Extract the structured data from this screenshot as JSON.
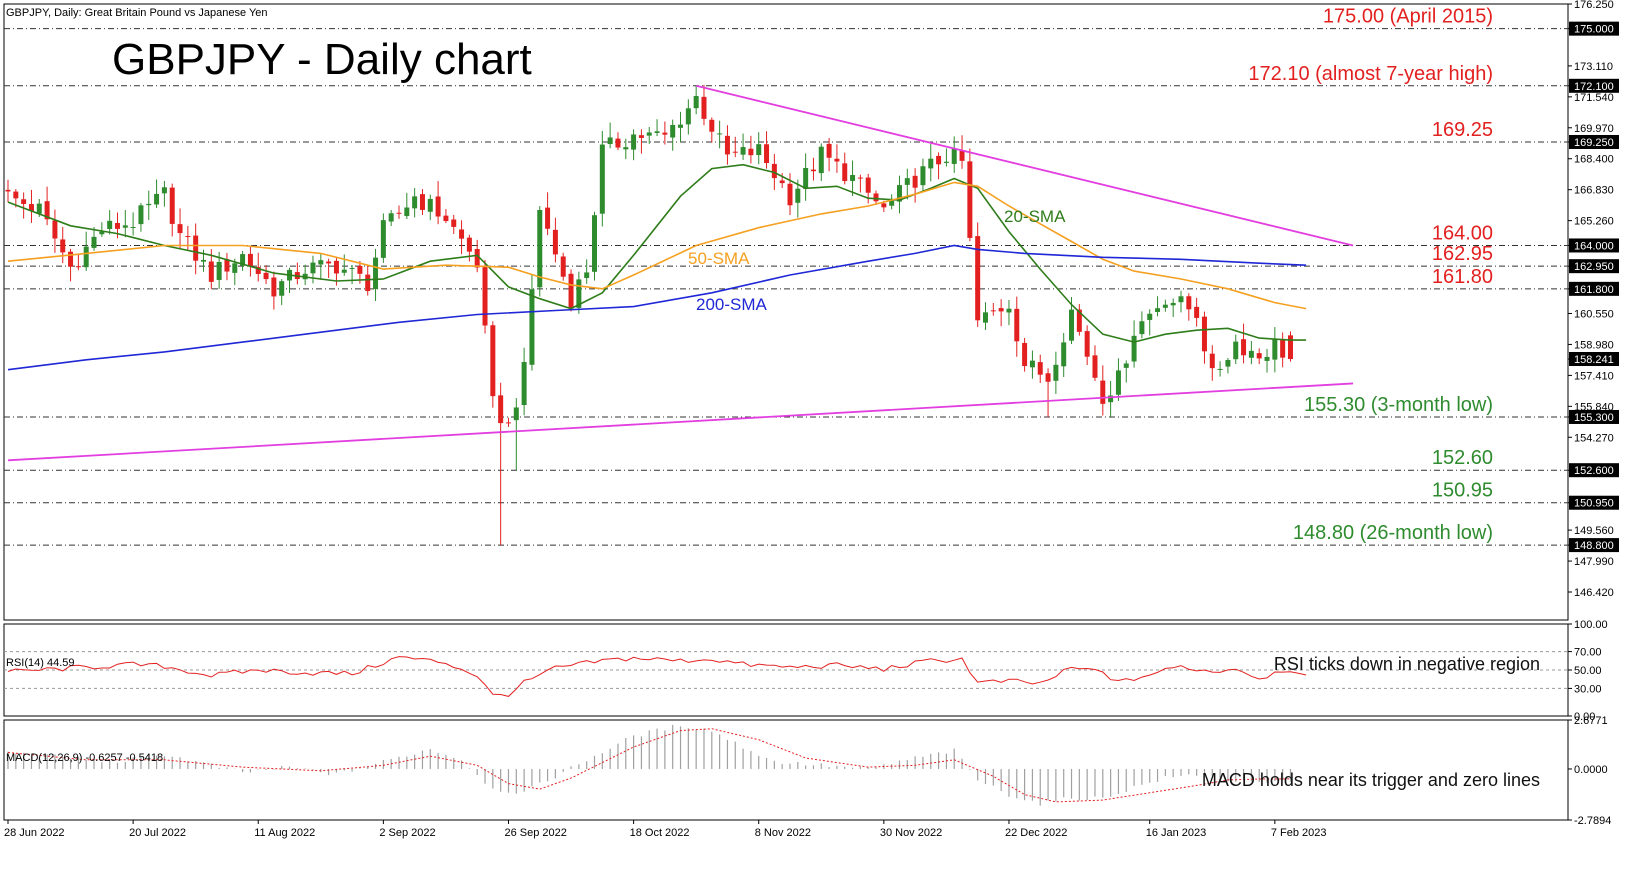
{
  "header": {
    "symbol_line": "GBPJPY, Daily:  Great Britain Pound vs Japanese Yen",
    "title": "GBPJPY - Daily chart"
  },
  "colors": {
    "bull": "#2e8b2e",
    "bear": "#e32020",
    "sma20": "#2e7d1a",
    "sma50": "#f5a020",
    "sma200": "#1f27d6",
    "trend": "#e23ee0",
    "level_red": "#e32020",
    "level_green": "#2e8b2e",
    "rsi": "#e32020",
    "macd_signal": "#e32020",
    "macd_hist": "#a0a0a0"
  },
  "chart_data": [
    {
      "type": "candlestick",
      "title": "GBPJPY - Daily chart",
      "ylim": [
        145.0,
        176.25
      ],
      "y_ticks": [
        "176.250",
        "175.000",
        "173.110",
        "172.100",
        "171.540",
        "169.970",
        "169.250",
        "168.400",
        "166.830",
        "165.260",
        "164.000",
        "162.950",
        "161.800",
        "160.550",
        "158.980",
        "158.241",
        "157.410",
        "155.840",
        "155.300",
        "154.270",
        "152.600",
        "150.950",
        "149.560",
        "148.800",
        "147.990",
        "146.420"
      ],
      "highlighted_ticks": [
        "175.000",
        "172.100",
        "169.250",
        "164.000",
        "162.950",
        "161.800",
        "158.241",
        "155.300",
        "152.600",
        "150.950",
        "148.800"
      ],
      "x_ticks": [
        "28 Jun 2022",
        "20 Jul 2022",
        "11 Aug 2022",
        "2 Sep 2022",
        "26 Sep 2022",
        "18 Oct 2022",
        "8 Nov 2022",
        "30 Nov 2022",
        "22 Dec 2022",
        "16 Jan 2023",
        "7 Feb 2023"
      ],
      "x_tick_index": [
        0,
        16,
        32,
        48,
        64,
        80,
        96,
        112,
        128,
        146,
        162
      ],
      "levels": [
        {
          "value": 175.0,
          "label": "175.00 (April 2015)",
          "color": "red"
        },
        {
          "value": 172.1,
          "label": "172.10 (almost 7-year high)",
          "color": "red"
        },
        {
          "value": 169.25,
          "label": "169.25",
          "color": "red"
        },
        {
          "value": 164.0,
          "label": "164.00",
          "color": "red"
        },
        {
          "value": 162.95,
          "label": "162.95",
          "color": "red"
        },
        {
          "value": 161.8,
          "label": "161.80",
          "color": "red"
        },
        {
          "value": 155.3,
          "label": "155.30 (3-month low)",
          "color": "green"
        },
        {
          "value": 152.6,
          "label": "152.60",
          "color": "green"
        },
        {
          "value": 150.95,
          "label": "150.95",
          "color": "green"
        },
        {
          "value": 148.8,
          "label": "148.80 (26-month low)",
          "color": "green"
        }
      ],
      "trendlines": [
        {
          "from": [
            88,
            172.1
          ],
          "to": [
            172,
            164.0
          ]
        },
        {
          "from": [
            0,
            153.1
          ],
          "to": [
            172,
            157.0
          ]
        }
      ],
      "series": [
        {
          "name": "20-SMA",
          "points": [
            [
              0,
              166.2
            ],
            [
              8,
              165.0
            ],
            [
              14,
              164.6
            ],
            [
              20,
              164.0
            ],
            [
              26,
              163.5
            ],
            [
              34,
              162.6
            ],
            [
              42,
              162.2
            ],
            [
              48,
              162.3
            ],
            [
              54,
              163.2
            ],
            [
              60,
              163.5
            ],
            [
              64,
              161.9
            ],
            [
              68,
              161.3
            ],
            [
              72,
              160.8
            ],
            [
              76,
              161.6
            ],
            [
              80,
              163.5
            ],
            [
              86,
              166.5
            ],
            [
              90,
              167.9
            ],
            [
              94,
              168.1
            ],
            [
              98,
              167.7
            ],
            [
              102,
              166.9
            ],
            [
              106,
              167.0
            ],
            [
              110,
              166.4
            ],
            [
              114,
              166.3
            ],
            [
              118,
              166.9
            ],
            [
              121,
              167.4
            ],
            [
              124,
              166.9
            ],
            [
              128,
              164.7
            ],
            [
              132,
              162.8
            ],
            [
              136,
              161.0
            ],
            [
              140,
              159.5
            ],
            [
              144,
              159.1
            ],
            [
              148,
              159.5
            ],
            [
              152,
              159.7
            ],
            [
              156,
              159.8
            ],
            [
              160,
              159.3
            ],
            [
              164,
              159.2
            ],
            [
              166,
              159.2
            ]
          ]
        },
        {
          "name": "50-SMA",
          "points": [
            [
              0,
              163.2
            ],
            [
              10,
              163.6
            ],
            [
              20,
              164.0
            ],
            [
              30,
              164.0
            ],
            [
              40,
              163.6
            ],
            [
              48,
              162.8
            ],
            [
              56,
              163.0
            ],
            [
              64,
              162.9
            ],
            [
              68,
              162.4
            ],
            [
              72,
              162.0
            ],
            [
              76,
              161.8
            ],
            [
              80,
              162.5
            ],
            [
              88,
              164.0
            ],
            [
              96,
              164.9
            ],
            [
              104,
              165.6
            ],
            [
              110,
              166.0
            ],
            [
              116,
              166.6
            ],
            [
              121,
              167.2
            ],
            [
              124,
              167.0
            ],
            [
              128,
              166.0
            ],
            [
              132,
              165.1
            ],
            [
              136,
              164.2
            ],
            [
              140,
              163.3
            ],
            [
              144,
              162.7
            ],
            [
              150,
              162.3
            ],
            [
              156,
              161.8
            ],
            [
              162,
              161.1
            ],
            [
              166,
              160.8
            ]
          ]
        },
        {
          "name": "200-SMA",
          "points": [
            [
              0,
              157.7
            ],
            [
              10,
              158.2
            ],
            [
              20,
              158.6
            ],
            [
              30,
              159.1
            ],
            [
              40,
              159.6
            ],
            [
              50,
              160.1
            ],
            [
              60,
              160.5
            ],
            [
              70,
              160.7
            ],
            [
              80,
              160.9
            ],
            [
              90,
              161.6
            ],
            [
              100,
              162.5
            ],
            [
              110,
              163.2
            ],
            [
              116,
              163.6
            ],
            [
              121,
              164.0
            ],
            [
              124,
              163.8
            ],
            [
              130,
              163.6
            ],
            [
              140,
              163.4
            ],
            [
              150,
              163.3
            ],
            [
              160,
              163.1
            ],
            [
              166,
              163.0
            ]
          ]
        }
      ],
      "ohlc_keypoints": [
        [
          0,
          166.5
        ],
        [
          4,
          165.8
        ],
        [
          8,
          162.9
        ],
        [
          12,
          164.8
        ],
        [
          16,
          165.2
        ],
        [
          20,
          166.6
        ],
        [
          22,
          164.5
        ],
        [
          26,
          162.5
        ],
        [
          30,
          163.5
        ],
        [
          34,
          161.8
        ],
        [
          38,
          162.8
        ],
        [
          42,
          163.0
        ],
        [
          46,
          162.1
        ],
        [
          48,
          164.8
        ],
        [
          52,
          166.5
        ],
        [
          56,
          165.4
        ],
        [
          60,
          163.1
        ],
        [
          62,
          155.9
        ],
        [
          64,
          154.8
        ],
        [
          66,
          157.6
        ],
        [
          68,
          165.9
        ],
        [
          72,
          161.3
        ],
        [
          74,
          162.8
        ],
        [
          76,
          168.8
        ],
        [
          80,
          169.6
        ],
        [
          84,
          169.5
        ],
        [
          88,
          171.5
        ],
        [
          92,
          168.5
        ],
        [
          96,
          168.8
        ],
        [
          100,
          166.5
        ],
        [
          104,
          168.6
        ],
        [
          108,
          167.4
        ],
        [
          112,
          165.8
        ],
        [
          116,
          167.4
        ],
        [
          120,
          168.6
        ],
        [
          122,
          168.2
        ],
        [
          124,
          160.1
        ],
        [
          128,
          161.1
        ],
        [
          130,
          158.0
        ],
        [
          133,
          157.3
        ],
        [
          136,
          160.7
        ],
        [
          138,
          158.5
        ],
        [
          140,
          156.4
        ],
        [
          142,
          157.2
        ],
        [
          144,
          159.7
        ],
        [
          148,
          161.4
        ],
        [
          152,
          160.6
        ],
        [
          154,
          157.3
        ],
        [
          157,
          159.1
        ],
        [
          160,
          158.4
        ],
        [
          162,
          159.0
        ],
        [
          164,
          158.24
        ]
      ]
    },
    {
      "type": "line",
      "title": "RSI(14) 44.59",
      "annotation": "RSI ticks down  in negative region",
      "ylim": [
        0,
        100
      ],
      "y_ticks": [
        "100.00",
        "70.00",
        "50.00",
        "30.00",
        "0.00"
      ],
      "keypoints": [
        [
          0,
          48
        ],
        [
          8,
          52
        ],
        [
          16,
          56
        ],
        [
          20,
          54
        ],
        [
          26,
          44
        ],
        [
          32,
          50
        ],
        [
          38,
          47
        ],
        [
          44,
          46
        ],
        [
          50,
          64
        ],
        [
          56,
          58
        ],
        [
          60,
          44
        ],
        [
          62,
          22
        ],
        [
          64,
          24
        ],
        [
          66,
          36
        ],
        [
          70,
          52
        ],
        [
          76,
          60
        ],
        [
          80,
          63
        ],
        [
          86,
          60
        ],
        [
          90,
          62
        ],
        [
          94,
          56
        ],
        [
          100,
          53
        ],
        [
          106,
          55
        ],
        [
          112,
          51
        ],
        [
          118,
          60
        ],
        [
          122,
          62
        ],
        [
          124,
          36
        ],
        [
          128,
          38
        ],
        [
          132,
          35
        ],
        [
          136,
          52
        ],
        [
          140,
          48
        ],
        [
          142,
          36
        ],
        [
          146,
          45
        ],
        [
          150,
          54
        ],
        [
          154,
          48
        ],
        [
          157,
          52
        ],
        [
          160,
          41
        ],
        [
          163,
          50
        ],
        [
          166,
          44.59
        ]
      ]
    },
    {
      "type": "bar",
      "title": "MACD(12,26,9) -0.6257 -0.5418",
      "annotation": "MACD holds near its trigger and zero lines",
      "ylim": [
        -2.7894,
        2.6771
      ],
      "y_ticks": [
        "2.6771",
        "0.0000",
        "-2.7894"
      ],
      "hist_keypoints": [
        [
          0,
          0.9
        ],
        [
          8,
          0.6
        ],
        [
          14,
          0.4
        ],
        [
          20,
          0.8
        ],
        [
          26,
          0.2
        ],
        [
          30,
          -0.2
        ],
        [
          36,
          0.1
        ],
        [
          42,
          -0.3
        ],
        [
          48,
          0.4
        ],
        [
          54,
          1.1
        ],
        [
          58,
          0.5
        ],
        [
          62,
          -1.1
        ],
        [
          66,
          -1.3
        ],
        [
          70,
          -0.4
        ],
        [
          74,
          0.5
        ],
        [
          80,
          1.8
        ],
        [
          86,
          2.4
        ],
        [
          90,
          2.1
        ],
        [
          94,
          1.2
        ],
        [
          98,
          0.4
        ],
        [
          104,
          0.2
        ],
        [
          110,
          0.0
        ],
        [
          116,
          0.6
        ],
        [
          121,
          1.0
        ],
        [
          124,
          -0.6
        ],
        [
          128,
          -1.4
        ],
        [
          132,
          -1.9
        ],
        [
          136,
          -1.6
        ],
        [
          140,
          -1.6
        ],
        [
          144,
          -1.0
        ],
        [
          148,
          -0.5
        ],
        [
          152,
          -0.3
        ],
        [
          156,
          -0.6
        ],
        [
          160,
          -0.8
        ],
        [
          164,
          -0.6257
        ]
      ],
      "signal_keypoints": [
        [
          0,
          0.9
        ],
        [
          10,
          0.5
        ],
        [
          20,
          0.5
        ],
        [
          30,
          0.1
        ],
        [
          40,
          -0.1
        ],
        [
          48,
          0.2
        ],
        [
          54,
          0.7
        ],
        [
          60,
          0.2
        ],
        [
          64,
          -0.8
        ],
        [
          68,
          -1.1
        ],
        [
          72,
          -0.5
        ],
        [
          80,
          1.2
        ],
        [
          86,
          2.1
        ],
        [
          90,
          2.2
        ],
        [
          96,
          1.6
        ],
        [
          102,
          0.6
        ],
        [
          110,
          0.1
        ],
        [
          116,
          0.2
        ],
        [
          121,
          0.5
        ],
        [
          126,
          -0.4
        ],
        [
          130,
          -1.4
        ],
        [
          134,
          -1.8
        ],
        [
          140,
          -1.7
        ],
        [
          146,
          -1.3
        ],
        [
          152,
          -0.9
        ],
        [
          156,
          -0.6
        ],
        [
          160,
          -0.55
        ],
        [
          164,
          -0.5418
        ]
      ]
    }
  ]
}
